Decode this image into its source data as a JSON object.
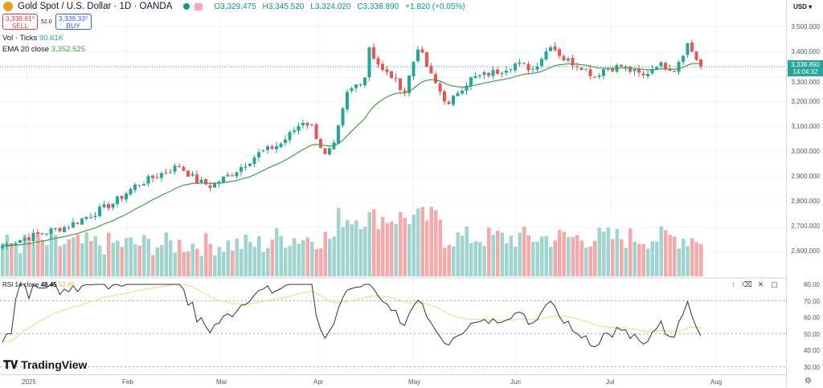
{
  "header": {
    "title": "Gold Spot / U.S. Dollar · 1D · OANDA",
    "open": "O3,329.475",
    "high": "H3,345.520",
    "low": "L3,324.020",
    "close": "C3,338.890",
    "change": "+1.820 (+0.05%)"
  },
  "trade": {
    "sell_price": "3,338.81⁰",
    "sell_label": "SELL",
    "spread": "52.0",
    "buy_price": "3,339.33⁰",
    "buy_label": "BUY"
  },
  "indicators": {
    "vol_label": "Vol · Ticks",
    "vol_value": "90.61K",
    "ema_label": "EMA 20 close",
    "ema_value": "3,352.525",
    "rsi_label": "RSI 14 close",
    "rsi_value": "48.45",
    "rsi_ma_value": "52.65"
  },
  "price_axis": {
    "currency": "USD",
    "ticks": [
      "3,500.000",
      "3,400.000",
      "3,300.000",
      "3,200.000",
      "3,100.000",
      "3,000.000",
      "2,900.000",
      "2,800.000",
      "2,700.000",
      "2,600.000"
    ],
    "last_price": "3,338.890",
    "countdown": "14:04:32"
  },
  "rsi_axis": {
    "ticks": [
      "80.00",
      "70.00",
      "60.00",
      "50.00",
      "40.00",
      "30.00"
    ]
  },
  "time_axis": [
    {
      "label": "2025",
      "x": 33
    },
    {
      "label": "Feb",
      "x": 158
    },
    {
      "label": "Mar",
      "x": 275
    },
    {
      "label": "Apr",
      "x": 396
    },
    {
      "label": "May",
      "x": 514
    },
    {
      "label": "Jun",
      "x": 641
    },
    {
      "label": "Jul",
      "x": 760
    },
    {
      "label": "Aug",
      "x": 890
    }
  ],
  "branding": "TradingView",
  "colors": {
    "up": "#26a69a",
    "down": "#ef5350",
    "ema": "#43a047",
    "rsi": "#333333",
    "rsi_ma": "#f0e08a"
  },
  "chart_data": {
    "type": "candlestick",
    "keypoints": [
      [
        0,
        2620
      ],
      [
        5,
        2650
      ],
      [
        15,
        2700
      ],
      [
        25,
        2790
      ],
      [
        30,
        2860
      ],
      [
        36,
        2910
      ],
      [
        40,
        2940
      ],
      [
        44,
        2880
      ],
      [
        47,
        2860
      ],
      [
        52,
        2910
      ],
      [
        58,
        2990
      ],
      [
        63,
        3030
      ],
      [
        68,
        3120
      ],
      [
        70,
        3100
      ],
      [
        73,
        2980
      ],
      [
        75,
        3020
      ],
      [
        78,
        3230
      ],
      [
        82,
        3300
      ],
      [
        83,
        3420
      ],
      [
        84,
        3380
      ],
      [
        86,
        3320
      ],
      [
        88,
        3300
      ],
      [
        91,
        3240
      ],
      [
        94,
        3420
      ],
      [
        97,
        3300
      ],
      [
        101,
        3180
      ],
      [
        103,
        3240
      ],
      [
        106,
        3290
      ],
      [
        112,
        3320
      ],
      [
        116,
        3350
      ],
      [
        120,
        3330
      ],
      [
        123,
        3400
      ],
      [
        124,
        3430
      ],
      [
        127,
        3370
      ],
      [
        131,
        3340
      ],
      [
        134,
        3300
      ],
      [
        136,
        3330
      ],
      [
        140,
        3340
      ],
      [
        145,
        3300
      ],
      [
        148,
        3350
      ],
      [
        152,
        3330
      ],
      [
        155,
        3430
      ],
      [
        157,
        3370
      ],
      [
        158,
        3339
      ]
    ]
  }
}
